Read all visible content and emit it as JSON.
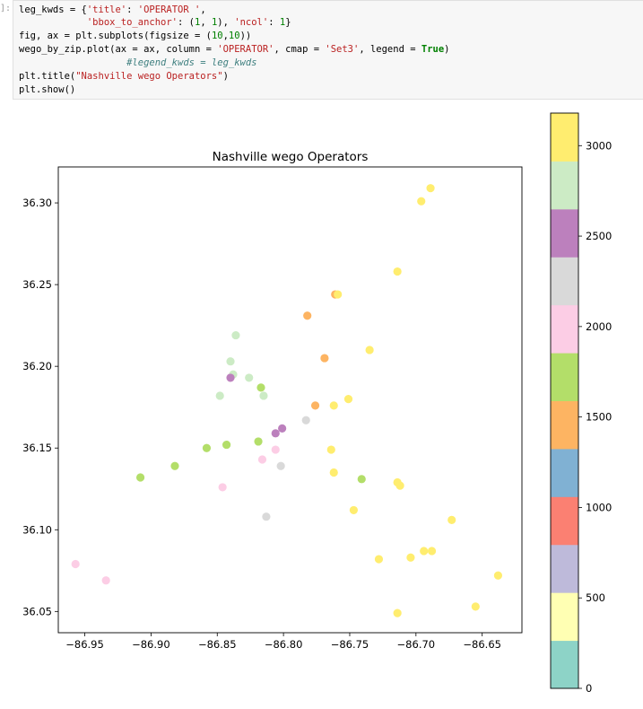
{
  "cell": {
    "prompt": "]:",
    "lines": [
      [
        [
          "",
          "leg_kwds = {"
        ],
        [
          "str",
          "'title'"
        ],
        [
          "",
          ": "
        ],
        [
          "str",
          "'OPERATOR '"
        ],
        [
          "",
          ","
        ]
      ],
      [
        [
          "",
          "            "
        ],
        [
          "str",
          "'bbox_to_anchor'"
        ],
        [
          "",
          ": ("
        ],
        [
          "num",
          "1"
        ],
        [
          "",
          ", "
        ],
        [
          "num",
          "1"
        ],
        [
          "",
          "), "
        ],
        [
          "str",
          "'ncol'"
        ],
        [
          "",
          ": "
        ],
        [
          "num",
          "1"
        ],
        [
          "",
          "}"
        ]
      ],
      [
        [
          "",
          "fig, ax = plt.subplots(figsize = ("
        ],
        [
          "num",
          "10"
        ],
        [
          "",
          ","
        ],
        [
          "num",
          "10"
        ],
        [
          "",
          "))"
        ]
      ],
      [
        [
          "",
          "wego_by_zip.plot(ax = ax, column = "
        ],
        [
          "str",
          "'OPERATOR'"
        ],
        [
          "",
          ", cmap = "
        ],
        [
          "str",
          "'Set3'"
        ],
        [
          "",
          ", legend = "
        ],
        [
          "kw",
          "True"
        ],
        [
          "",
          ")"
        ]
      ],
      [
        [
          "",
          "                   "
        ],
        [
          "com",
          "#legend_kwds = leg_kwds"
        ]
      ],
      [
        [
          "",
          "plt.title("
        ],
        [
          "str",
          "\"Nashville wego Operators\""
        ],
        [
          "",
          ")"
        ]
      ],
      [
        [
          "",
          "plt.show()"
        ]
      ]
    ]
  },
  "chart_data": {
    "type": "scatter",
    "title": "Nashville wego Operators",
    "xlim": [
      -86.97,
      -86.62
    ],
    "ylim": [
      36.037,
      36.322
    ],
    "xticks": [
      -86.95,
      -86.9,
      -86.85,
      -86.8,
      -86.75,
      -86.7,
      -86.65
    ],
    "xtick_labels": [
      "−86.95",
      "−86.90",
      "−86.85",
      "−86.80",
      "−86.75",
      "−86.70",
      "−86.65"
    ],
    "yticks": [
      36.05,
      36.1,
      36.15,
      36.2,
      36.25,
      36.3
    ],
    "ytick_labels": [
      "36.05",
      "36.10",
      "36.15",
      "36.20",
      "36.25",
      "36.30"
    ],
    "colorbar": {
      "cmap": "Set3",
      "vmin": 0,
      "vmax": 3180,
      "ticks": [
        0,
        500,
        1000,
        1500,
        2000,
        2500,
        3000
      ],
      "tick_labels": [
        "0",
        "500",
        "1000",
        "1500",
        "2000",
        "2500",
        "3000"
      ],
      "colors": [
        "#8dd3c7",
        "#ffffb3",
        "#bebada",
        "#fb8072",
        "#80b1d3",
        "#fdb462",
        "#b3de69",
        "#fccde5",
        "#d9d9d9",
        "#bc80bd",
        "#ccebc5",
        "#ffed6f"
      ]
    },
    "points": [
      {
        "x": -86.689,
        "y": 36.309,
        "operator": 3150
      },
      {
        "x": -86.696,
        "y": 36.301,
        "operator": 3100
      },
      {
        "x": -86.714,
        "y": 36.258,
        "operator": 3050
      },
      {
        "x": -86.761,
        "y": 36.244,
        "operator": 1550
      },
      {
        "x": -86.759,
        "y": 36.244,
        "operator": 3000
      },
      {
        "x": -86.782,
        "y": 36.231,
        "operator": 1500
      },
      {
        "x": -86.836,
        "y": 36.219,
        "operator": 2800
      },
      {
        "x": -86.735,
        "y": 36.21,
        "operator": 3100
      },
      {
        "x": -86.769,
        "y": 36.205,
        "operator": 1520
      },
      {
        "x": -86.84,
        "y": 36.203,
        "operator": 2750
      },
      {
        "x": -86.838,
        "y": 36.195,
        "operator": 2850
      },
      {
        "x": -86.84,
        "y": 36.193,
        "operator": 2550
      },
      {
        "x": -86.826,
        "y": 36.193,
        "operator": 2780
      },
      {
        "x": -86.817,
        "y": 36.187,
        "operator": 1800
      },
      {
        "x": -86.815,
        "y": 36.182,
        "operator": 2820
      },
      {
        "x": -86.848,
        "y": 36.182,
        "operator": 2720
      },
      {
        "x": -86.751,
        "y": 36.18,
        "operator": 3050
      },
      {
        "x": -86.776,
        "y": 36.176,
        "operator": 1530
      },
      {
        "x": -86.762,
        "y": 36.176,
        "operator": 3000
      },
      {
        "x": -86.783,
        "y": 36.167,
        "operator": 2300
      },
      {
        "x": -86.801,
        "y": 36.162,
        "operator": 2600
      },
      {
        "x": -86.806,
        "y": 36.159,
        "operator": 2580
      },
      {
        "x": -86.819,
        "y": 36.154,
        "operator": 1850
      },
      {
        "x": -86.843,
        "y": 36.152,
        "operator": 1780
      },
      {
        "x": -86.858,
        "y": 36.15,
        "operator": 1760
      },
      {
        "x": -86.764,
        "y": 36.149,
        "operator": 3050
      },
      {
        "x": -86.806,
        "y": 36.149,
        "operator": 2050
      },
      {
        "x": -86.816,
        "y": 36.143,
        "operator": 2000
      },
      {
        "x": -86.802,
        "y": 36.139,
        "operator": 2300
      },
      {
        "x": -86.882,
        "y": 36.139,
        "operator": 1790
      },
      {
        "x": -86.762,
        "y": 36.135,
        "operator": 3100
      },
      {
        "x": -86.908,
        "y": 36.132,
        "operator": 1800
      },
      {
        "x": -86.741,
        "y": 36.131,
        "operator": 1820
      },
      {
        "x": -86.714,
        "y": 36.129,
        "operator": 3080
      },
      {
        "x": -86.712,
        "y": 36.127,
        "operator": 3040
      },
      {
        "x": -86.846,
        "y": 36.126,
        "operator": 2100
      },
      {
        "x": -86.747,
        "y": 36.112,
        "operator": 3020
      },
      {
        "x": -86.813,
        "y": 36.108,
        "operator": 2350
      },
      {
        "x": -86.673,
        "y": 36.106,
        "operator": 3120
      },
      {
        "x": -86.694,
        "y": 36.087,
        "operator": 3150
      },
      {
        "x": -86.688,
        "y": 36.087,
        "operator": 3000
      },
      {
        "x": -86.704,
        "y": 36.083,
        "operator": 3060
      },
      {
        "x": -86.728,
        "y": 36.082,
        "operator": 3010
      },
      {
        "x": -86.957,
        "y": 36.079,
        "operator": 2080
      },
      {
        "x": -86.638,
        "y": 36.072,
        "operator": 3140
      },
      {
        "x": -86.934,
        "y": 36.069,
        "operator": 2060
      },
      {
        "x": -86.655,
        "y": 36.053,
        "operator": 3030
      },
      {
        "x": -86.714,
        "y": 36.049,
        "operator": 3090
      }
    ]
  }
}
